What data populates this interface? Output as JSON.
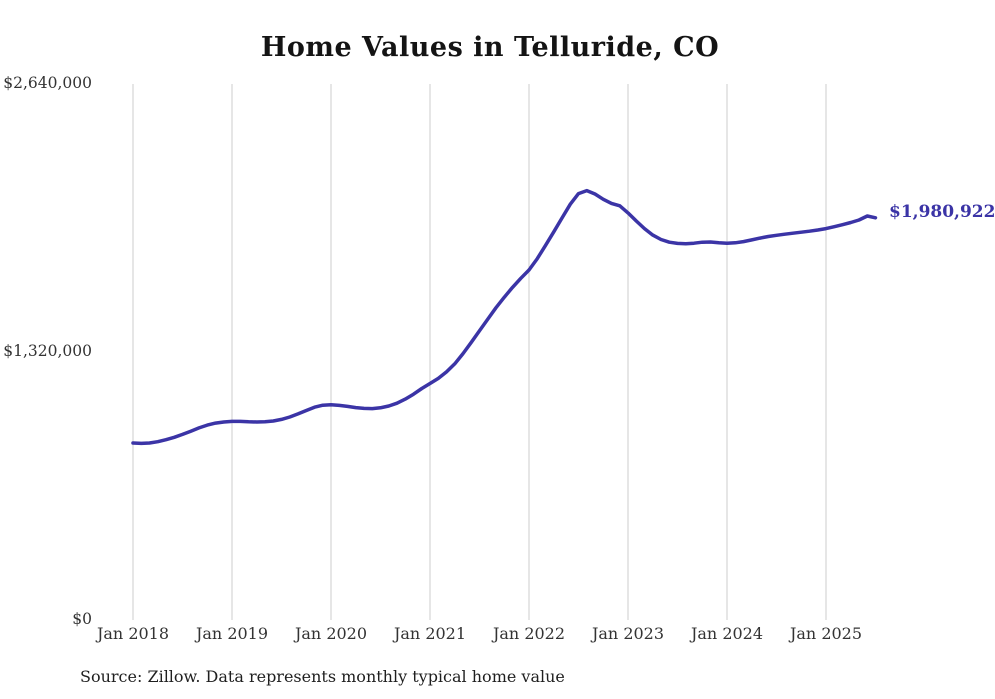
{
  "title": "Home Values in Telluride, CO",
  "source_note": "Source: Zillow. Data represents monthly typical home value",
  "end_label": "$1,980,922",
  "colors": {
    "line": "#3b34a6",
    "grid": "#cccccc",
    "title_text": "#141414",
    "axis_text": "#333333",
    "end_label_text": "#3b34a6"
  },
  "chart_data": {
    "type": "line",
    "title": "Home Values in Telluride, CO",
    "series_name": "Monthly typical home value",
    "x_start": "2018-01",
    "frequency": "monthly",
    "x_tick_labels": [
      "Jan 2018",
      "Jan 2019",
      "Jan 2020",
      "Jan 2021",
      "Jan 2022",
      "Jan 2023",
      "Jan 2024",
      "Jan 2025"
    ],
    "y_ticks": [
      {
        "label": "$0",
        "value": 0
      },
      {
        "label": "$1,320,000",
        "value": 1320000
      },
      {
        "label": "$2,640,000",
        "value": 2640000
      }
    ],
    "ylim": [
      0,
      2640000
    ],
    "grid": "vertical-only",
    "legend": "none",
    "final_value": 1980922,
    "values": [
      872000,
      870000,
      872000,
      878000,
      888000,
      900000,
      914000,
      930000,
      946000,
      960000,
      970000,
      975000,
      978000,
      978000,
      976000,
      975000,
      976000,
      980000,
      988000,
      1000000,
      1015000,
      1032000,
      1048000,
      1058000,
      1060000,
      1057000,
      1052000,
      1046000,
      1042000,
      1041000,
      1045000,
      1054000,
      1068000,
      1088000,
      1112000,
      1140000,
      1165000,
      1190000,
      1222000,
      1262000,
      1312000,
      1368000,
      1425000,
      1482000,
      1538000,
      1590000,
      1638000,
      1683000,
      1724000,
      1780000,
      1845000,
      1912000,
      1980000,
      2048000,
      2100000,
      2115000,
      2098000,
      2072000,
      2052000,
      2040000,
      2005000,
      1965000,
      1928000,
      1896000,
      1874000,
      1861000,
      1855000,
      1853000,
      1856000,
      1861000,
      1862000,
      1858000,
      1856000,
      1858000,
      1864000,
      1872000,
      1881000,
      1889000,
      1895000,
      1900000,
      1905000,
      1910000,
      1915000,
      1921000,
      1928000,
      1937000,
      1947000,
      1958000,
      1970000,
      1990000,
      1980922
    ]
  }
}
